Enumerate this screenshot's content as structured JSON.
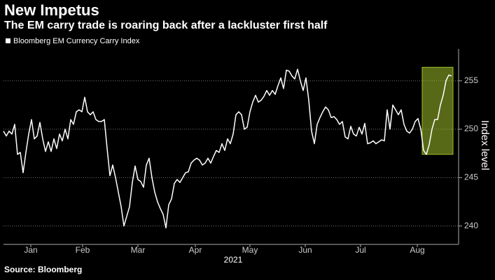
{
  "chart_data": {
    "type": "line",
    "title": "New Impetus",
    "subtitle": "The EM carry trade is roaring back after a lackluster first half",
    "y_label": "Index level",
    "x_label": "2021",
    "source": "Source: Bloomberg",
    "background": "#000000",
    "grid": true,
    "legend": "top-left",
    "ylim": [
      238.1,
      258.3
    ],
    "yticks": [
      240,
      245,
      250,
      255
    ],
    "xlim": [
      0,
      162.5
    ],
    "xticks": [
      {
        "value": 9.75,
        "label": "Jan"
      },
      {
        "value": 28.25,
        "label": "Feb"
      },
      {
        "value": 48,
        "label": "Mar"
      },
      {
        "value": 68.5,
        "label": "Apr"
      },
      {
        "value": 88,
        "label": "May"
      },
      {
        "value": 107.75,
        "label": "Jun"
      },
      {
        "value": 127.5,
        "label": "Jul"
      },
      {
        "value": 147.75,
        "label": "Aug"
      }
    ],
    "highlight": {
      "x": [
        149.5,
        160.5
      ],
      "y": [
        247.4,
        256.4
      ],
      "color": "#9fbf2a"
    },
    "series": [
      {
        "name": "Bloomberg EM Currency Carry Index",
        "color": "#ffffff",
        "values": [
          249.8,
          249.3,
          249.8,
          249.5,
          250.5,
          247.4,
          247.6,
          245.5,
          247.6,
          249.5,
          251.0,
          249.0,
          249.3,
          250.7,
          249.0,
          247.7,
          248.7,
          247.7,
          249.0,
          248.0,
          249.5,
          248.8,
          250.0,
          249.0,
          251.0,
          250.5,
          251.8,
          252.0,
          251.8,
          253.3,
          251.8,
          251.5,
          251.8,
          251.0,
          250.8,
          250.8,
          251.0,
          248.0,
          245.2,
          246.3,
          245.0,
          243.5,
          242.0,
          240.0,
          241.0,
          242.0,
          244.5,
          246.2,
          244.8,
          244.6,
          244.0,
          246.3,
          247.0,
          245.0,
          243.5,
          242.5,
          241.8,
          241.2,
          239.8,
          242.2,
          242.8,
          244.4,
          244.8,
          244.5,
          245.0,
          245.5,
          245.6,
          246.5,
          246.8,
          247.0,
          246.8,
          246.3,
          246.5,
          247.0,
          246.5,
          247.2,
          247.8,
          247.6,
          248.5,
          247.8,
          249.0,
          248.5,
          249.5,
          251.5,
          251.8,
          251.5,
          250.0,
          250.2,
          251.8,
          252.8,
          253.5,
          252.8,
          253.0,
          253.4,
          254.0,
          253.5,
          254.0,
          253.6,
          254.5,
          255.3,
          254.2,
          256.1,
          256.0,
          255.5,
          255.2,
          256.2,
          255.0,
          254.0,
          255.3,
          253.0,
          249.8,
          248.5,
          250.5,
          251.2,
          251.8,
          252.3,
          252.0,
          251.2,
          251.3,
          251.0,
          250.5,
          250.8,
          249.2,
          249.0,
          250.3,
          249.5,
          249.3,
          250.2,
          249.5,
          250.6,
          248.5,
          248.6,
          248.8,
          248.5,
          248.7,
          248.9,
          248.8,
          252.0,
          250.0,
          252.5,
          252.0,
          251.5,
          252.0,
          250.5,
          249.8,
          249.6,
          250.0,
          250.8,
          251.1,
          250.0,
          247.8,
          247.4,
          248.4,
          250.0,
          251.0,
          251.0,
          252.5,
          253.5,
          255.0,
          255.6,
          255.5
        ]
      }
    ]
  }
}
